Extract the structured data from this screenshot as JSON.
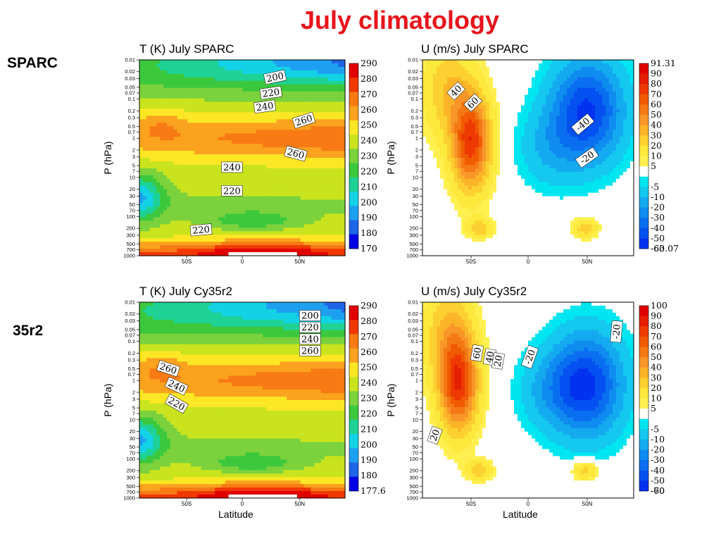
{
  "title": "July climatology",
  "row_labels": [
    "SPARC",
    "35r2"
  ],
  "x_axis_label": "Latitude",
  "chart_data": [
    {
      "type": "heatmap",
      "title": "T (K) July SPARC",
      "xlabel": "",
      "ylabel": "P (hPa)",
      "x_ticks": [
        "50S",
        "0",
        "50N"
      ],
      "y_ticks": [
        "0.01",
        "0.02",
        "0.03",
        "0.05",
        "0.07",
        "0.1",
        "0.2",
        "0.3",
        "0.5",
        "0.7",
        "1",
        "2",
        "3",
        "5",
        "7",
        "10",
        "20",
        "30",
        "50",
        "70",
        "100",
        "200",
        "300",
        "500",
        "700",
        "1000"
      ],
      "colorbar_labels": [
        "290",
        "280",
        "270",
        "260",
        "250",
        "240",
        "230",
        "220",
        "210",
        "200",
        "190",
        "180",
        "170"
      ],
      "contour_labels": [
        "200",
        "220",
        "240",
        "260",
        "260",
        "240",
        "220",
        "220"
      ],
      "colors": [
        "#e00000",
        "#f03800",
        "#f77a14",
        "#fba21e",
        "#fde724",
        "#c9e41e",
        "#7bd23c",
        "#3cc83c",
        "#1ed296",
        "#14d2e6",
        "#1ea0f0",
        "#1e64e6",
        "#0000e6"
      ]
    },
    {
      "type": "heatmap",
      "title": "U (m/s) July SPARC",
      "xlabel": "",
      "ylabel": "P (hPa)",
      "x_ticks": [
        "50S",
        "0",
        "50N"
      ],
      "y_ticks": [
        "0.01",
        "0.02",
        "0.03",
        "0.05",
        "0.07",
        "0.1",
        "0.2",
        "0.3",
        "0.5",
        "0.7",
        "1",
        "2",
        "3",
        "5",
        "7",
        "10",
        "20",
        "30",
        "50",
        "70",
        "100",
        "200",
        "300",
        "500",
        "700",
        "1000"
      ],
      "colorbar_labels": [
        "91.31",
        "90",
        "80",
        "70",
        "60",
        "50",
        "40",
        "30",
        "20",
        "10",
        "5",
        "-5",
        "-10",
        "-20",
        "-30",
        "-40",
        "-50",
        "-60",
        "-63.07"
      ],
      "contour_labels": [
        "40",
        "60",
        "-40",
        "-20"
      ],
      "colors": [
        "#e00000",
        "#e61e00",
        "#ee3a00",
        "#f05a00",
        "#f47814",
        "#f89628",
        "#fbb428",
        "#fcd030",
        "#fde83c",
        "#fff050",
        "#00e6f0",
        "#14c8f0",
        "#14aaf0",
        "#0f8cf0",
        "#0a6ef0",
        "#0550f0",
        "#0032f0"
      ]
    },
    {
      "type": "heatmap",
      "title": "T (K) July Cy35r2",
      "xlabel": "Latitude",
      "ylabel": "P (hPa)",
      "x_ticks": [
        "50S",
        "0",
        "50N"
      ],
      "y_ticks": [
        "0.01",
        "0.02",
        "0.03",
        "0.05",
        "0.07",
        "0.1",
        "0.2",
        "0.3",
        "0.5",
        "0.7",
        "1",
        "2",
        "3",
        "5",
        "7",
        "10",
        "20",
        "30",
        "50",
        "70",
        "100",
        "200",
        "300",
        "500",
        "700",
        "1000"
      ],
      "colorbar_labels": [
        "290",
        "280",
        "270",
        "260",
        "250",
        "240",
        "230",
        "220",
        "210",
        "200",
        "190",
        "180",
        "177.6"
      ],
      "contour_labels": [
        "200",
        "220",
        "240",
        "260",
        "260",
        "240",
        "220"
      ],
      "colors": [
        "#e00000",
        "#f03800",
        "#f77a14",
        "#fba21e",
        "#fde724",
        "#c9e41e",
        "#7bd23c",
        "#3cc83c",
        "#1ed296",
        "#14d2e6",
        "#1ea0f0",
        "#1e64e6",
        "#0000e6"
      ]
    },
    {
      "type": "heatmap",
      "title": "U (m/s) July Cy35r2",
      "xlabel": "Latitude",
      "ylabel": "P (hPa)",
      "x_ticks": [
        "50S",
        "0",
        "50N"
      ],
      "y_ticks": [
        "0.01",
        "0.02",
        "0.03",
        "0.05",
        "0.07",
        "0.1",
        "0.2",
        "0.3",
        "0.5",
        "0.7",
        "1",
        "2",
        "3",
        "5",
        "7",
        "10",
        "20",
        "30",
        "50",
        "70",
        "100",
        "200",
        "300",
        "500",
        "700",
        "1000"
      ],
      "colorbar_labels": [
        "100",
        "90",
        "80",
        "70",
        "60",
        "50",
        "40",
        "30",
        "20",
        "10",
        "5",
        "-5",
        "-10",
        "-20",
        "-30",
        "-40",
        "-50",
        "-60",
        "-70"
      ],
      "contour_labels": [
        "60",
        "40",
        "20",
        "-20",
        "-20",
        "20"
      ],
      "colors": [
        "#e00000",
        "#e61e00",
        "#ee3a00",
        "#f05a00",
        "#f47814",
        "#f89628",
        "#fbb428",
        "#fcd030",
        "#fde83c",
        "#fff050",
        "#00e6f0",
        "#14c8f0",
        "#14aaf0",
        "#0f8cf0",
        "#0a6ef0",
        "#0550f0",
        "#0032f0"
      ]
    }
  ]
}
